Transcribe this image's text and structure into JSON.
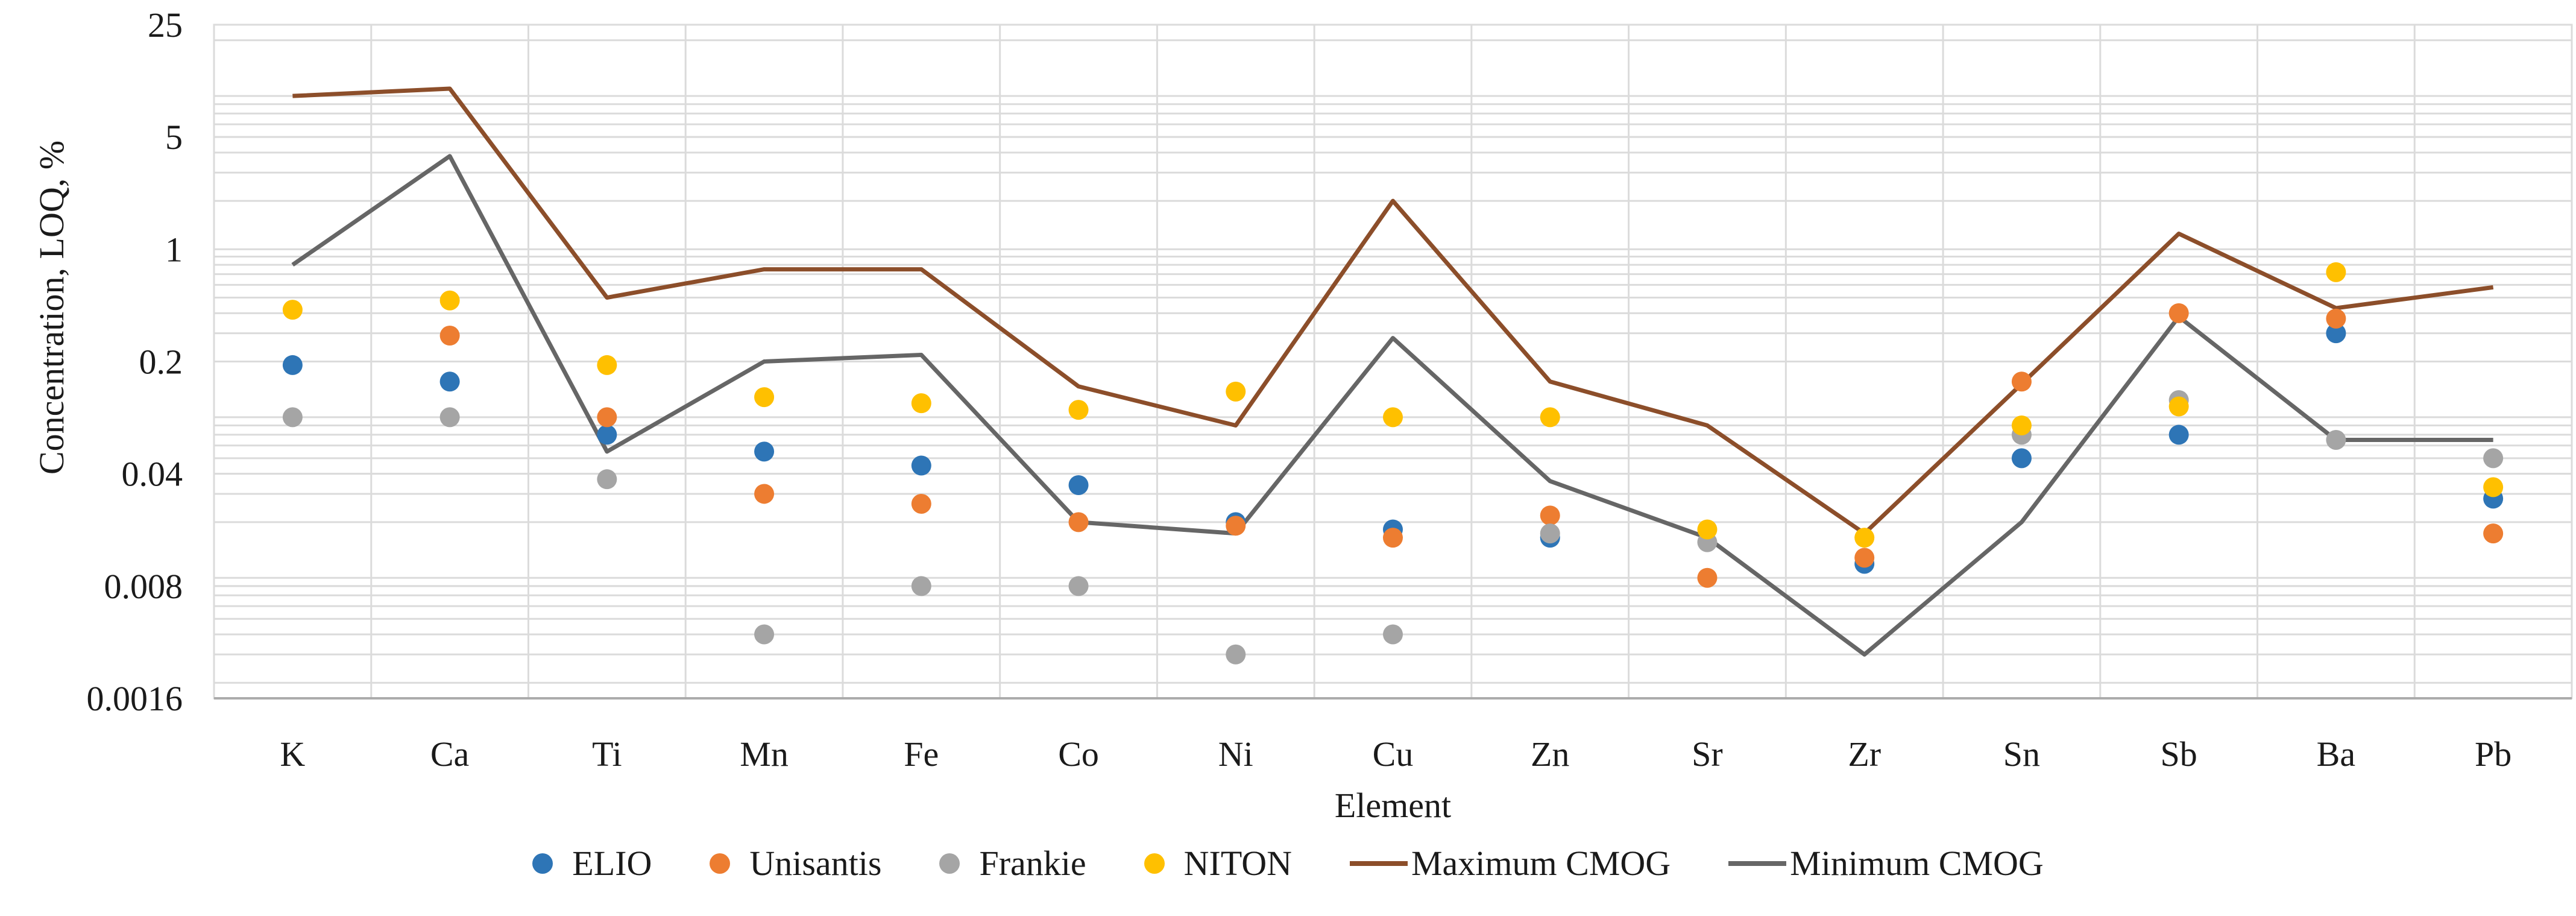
{
  "figure": {
    "background": "#ffffff",
    "grid_color": "#dbdbdb",
    "axis_line_color": "#ababab",
    "text_color": "#1a1a1a"
  },
  "chart_data": {
    "type": "scatter",
    "title": "",
    "xlabel": "Element",
    "ylabel": "Concentration, LOQ, %",
    "y_scale": "log",
    "ylim": [
      0.0016,
      25
    ],
    "y_tick_labels": [
      "25",
      "5",
      "1",
      "0.2",
      "0.04",
      "0.008",
      "0.0016"
    ],
    "y_ticks": [
      25,
      5,
      1,
      0.2,
      0.04,
      0.008,
      0.0016
    ],
    "grid": true,
    "legend_position": "bottom",
    "categories": [
      "K",
      "Ca",
      "Ti",
      "Mn",
      "Fe",
      "Co",
      "Ni",
      "Cu",
      "Zn",
      "Sr",
      "Zr",
      "Sn",
      "Sb",
      "Ba",
      "Pb"
    ],
    "series": [
      {
        "name": "ELIO",
        "type": "scatter",
        "color": "#2E75B6",
        "values": [
          0.19,
          0.15,
          0.07,
          0.055,
          0.045,
          0.034,
          0.02,
          0.018,
          0.016,
          null,
          0.011,
          0.05,
          0.07,
          0.3,
          0.028
        ]
      },
      {
        "name": "Unisantis",
        "type": "scatter",
        "color": "#ED7D31",
        "values": [
          null,
          0.29,
          0.09,
          0.03,
          0.026,
          0.02,
          0.019,
          0.016,
          0.022,
          0.009,
          0.012,
          0.15,
          0.4,
          0.37,
          0.017
        ]
      },
      {
        "name": "Frankie",
        "type": "scatter",
        "color": "#A5A5A5",
        "values": [
          0.09,
          0.09,
          0.037,
          0.004,
          0.008,
          0.008,
          0.003,
          0.004,
          0.017,
          0.015,
          null,
          0.07,
          0.115,
          0.065,
          0.05
        ]
      },
      {
        "name": "NITON",
        "type": "scatter",
        "color": "#FFC000",
        "values": [
          0.42,
          0.48,
          0.19,
          0.12,
          0.11,
          0.1,
          0.13,
          0.09,
          0.09,
          0.018,
          0.016,
          0.08,
          0.105,
          0.72,
          0.033
        ]
      },
      {
        "name": "Maximum CMOG",
        "type": "line",
        "color": "#8C4E2A",
        "values": [
          9,
          10,
          0.5,
          0.75,
          0.75,
          0.14,
          0.08,
          2.0,
          0.15,
          0.08,
          0.017,
          0.145,
          1.25,
          0.43,
          0.58
        ]
      },
      {
        "name": "Minimum CMOG",
        "type": "line",
        "color": "#666666",
        "values": [
          0.8,
          3.8,
          0.055,
          0.2,
          0.22,
          0.02,
          0.017,
          0.28,
          0.036,
          0.016,
          0.003,
          0.02,
          0.38,
          0.065,
          0.065
        ]
      }
    ]
  }
}
